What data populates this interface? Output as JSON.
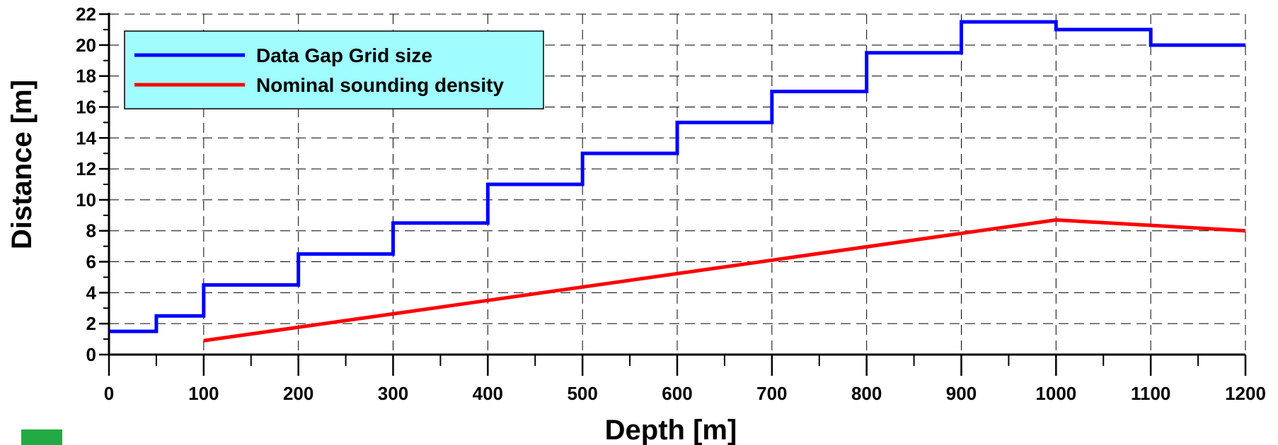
{
  "chart_data": {
    "type": "line",
    "title": "",
    "xlabel": "Depth [m]",
    "ylabel": "Distance [m]",
    "xlim": [
      0,
      1200
    ],
    "ylim": [
      0,
      22
    ],
    "xticks": [
      0,
      100,
      200,
      300,
      400,
      500,
      600,
      700,
      800,
      900,
      1000,
      1100,
      1200
    ],
    "yticks": [
      0,
      2,
      4,
      6,
      8,
      10,
      12,
      14,
      16,
      18,
      20,
      22
    ],
    "grid": true,
    "legend_position": "top-left",
    "series": [
      {
        "name": "Data Gap Grid size",
        "color": "#0000ff",
        "step": true,
        "x": [
          0,
          50,
          100,
          200,
          300,
          400,
          500,
          600,
          700,
          800,
          900,
          1000,
          1100,
          1200
        ],
        "y": [
          1.5,
          2.5,
          4.5,
          6.5,
          8.5,
          11,
          13,
          15,
          17,
          19.5,
          21.5,
          21,
          20,
          20
        ]
      },
      {
        "name": "Nominal sounding density",
        "color": "#ff0000",
        "step": false,
        "x": [
          100,
          1000,
          1200
        ],
        "y": [
          0.9,
          8.7,
          8.0
        ]
      }
    ]
  }
}
